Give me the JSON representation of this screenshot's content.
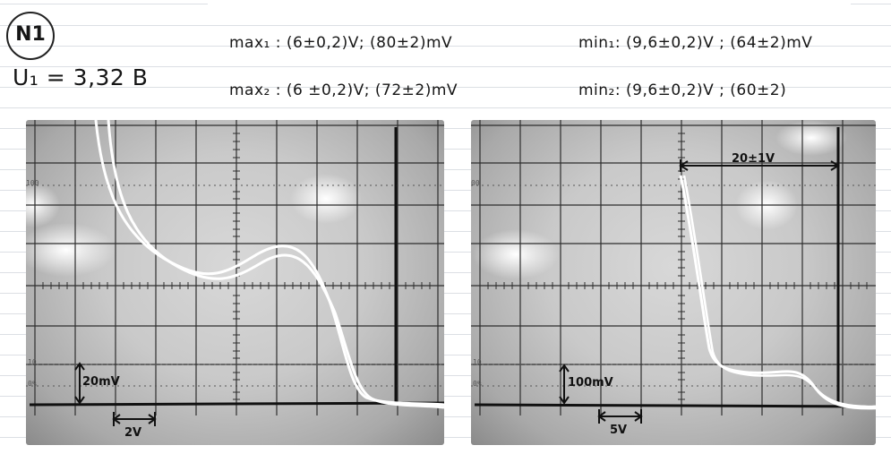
{
  "header": {
    "badge": "N1",
    "voltage": "U₁ = 3,32 B"
  },
  "measurements": {
    "max1": "max₁ : (6±0,2)V; (80±2)mV",
    "max2": "max₂ : (6 ±0,2)V; (72±2)mV",
    "min1": "min₁: (9,6±0,2)V ; (64±2)mV",
    "min2": "min₂: (9,6±0,2)V ; (60±2)"
  },
  "left_scope": {
    "label_100": "100",
    "label_10": "10",
    "label_0": "0%",
    "vertical_scale": "20mV",
    "horizontal_scale": "2V"
  },
  "right_scope": {
    "label_100": "00",
    "label_10": "10",
    "label_0": "0%",
    "vertical_scale": "100mV",
    "horizontal_scale": "5V",
    "span_label": "20±1V"
  },
  "colors": {
    "trace": "#ffffff",
    "grid": "#2a2a2a",
    "ink": "#111111"
  }
}
